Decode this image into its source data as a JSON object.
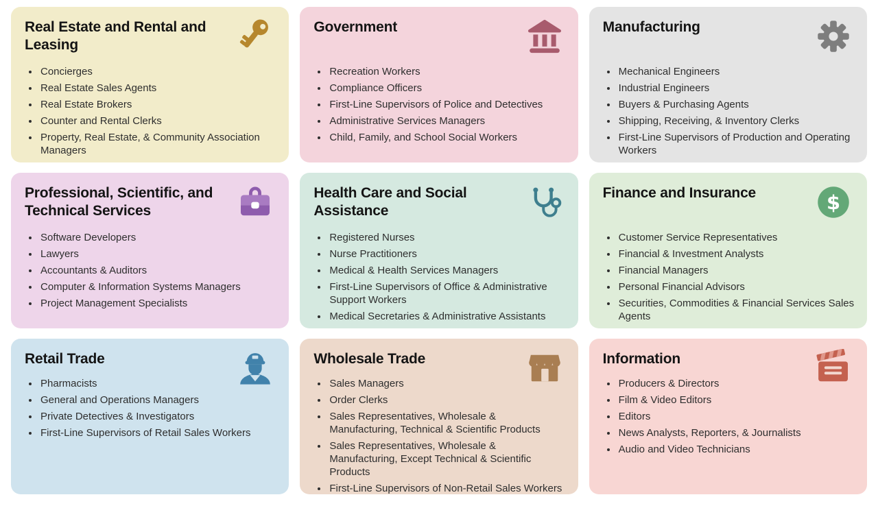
{
  "page": {
    "background": "#ffffff"
  },
  "grid": {
    "cards": [
      {
        "id": "real-estate",
        "title": "Real Estate and Rental and Leasing",
        "icon": "key-icon",
        "colors": {
          "background": "#f2ecca",
          "icon": "#b6872d"
        },
        "items": [
          "Concierges",
          "Real Estate Sales Agents",
          "Real Estate Brokers",
          "Counter and Rental Clerks",
          "Property, Real Estate, & Community Association Managers"
        ]
      },
      {
        "id": "government",
        "title": "Government",
        "icon": "bank-icon",
        "colors": {
          "background": "#f4d4dc",
          "icon": "#a85b6d"
        },
        "items": [
          "Recreation Workers",
          "Compliance Officers",
          "First-Line Supervisors of Police and Detectives",
          "Administrative Services Managers",
          "Child, Family, and School Social Workers"
        ]
      },
      {
        "id": "manufacturing",
        "title": "Manufacturing",
        "icon": "gear-icon",
        "colors": {
          "background": "#e4e4e4",
          "icon": "#7e7e7e"
        },
        "items": [
          "Mechanical Engineers",
          "Industrial Engineers",
          "Buyers & Purchasing Agents",
          "Shipping, Receiving, & Inventory Clerks",
          "First-Line Supervisors of Production and Operating Workers"
        ]
      },
      {
        "id": "professional-scientific-technical",
        "title": "Professional, Scientific, and Technical Services",
        "icon": "briefcase-icon",
        "colors": {
          "background": "#eed5ea",
          "icon": "#a97bc2",
          "icon_secondary": "#8e5cad"
        },
        "items": [
          "Software Developers",
          "Lawyers",
          "Accountants & Auditors",
          "Computer & Information Systems Managers",
          "Project Management Specialists"
        ]
      },
      {
        "id": "health-care",
        "title": "Health Care and Social Assistance",
        "icon": "stethoscope-icon",
        "colors": {
          "background": "#d5e9e0",
          "icon": "#3e7f8e"
        },
        "items": [
          "Registered Nurses",
          "Nurse Practitioners",
          "Medical & Health Services Managers",
          "First-Line Supervisors of Office & Administrative Support Workers",
          "Medical Secretaries & Administrative Assistants"
        ]
      },
      {
        "id": "finance-insurance",
        "title": "Finance and Insurance",
        "icon": "dollar-icon",
        "colors": {
          "background": "#dfedd9",
          "icon": "#63a877"
        },
        "items": [
          "Customer Service Representatives",
          "Financial & Investment Analysts",
          "Financial Managers",
          "Personal Financial Advisors",
          "Securities, Commodities & Financial Services Sales Agents"
        ]
      },
      {
        "id": "retail-trade",
        "title": "Retail Trade",
        "icon": "worker-icon",
        "colors": {
          "background": "#cfe3ee",
          "icon": "#4182ab"
        },
        "items": [
          "Pharmacists",
          "General and Operations Managers",
          "Private Detectives & Investigators",
          "First-Line Supervisors of Retail Sales Workers"
        ]
      },
      {
        "id": "wholesale-trade",
        "title": "Wholesale Trade",
        "icon": "store-icon",
        "colors": {
          "background": "#edd9cb",
          "icon": "#a97e52"
        },
        "items": [
          "Sales Managers",
          "Order Clerks",
          "Sales Representatives, Wholesale & Manufacturing, Technical & Scientific Products",
          "Sales Representatives, Wholesale & Manufacturing, Except Technical & Scientific Products",
          "First-Line Supervisors of Non-Retail Sales Workers"
        ]
      },
      {
        "id": "information",
        "title": "Information",
        "icon": "clapperboard-icon",
        "colors": {
          "background": "#f8d6d3",
          "icon": "#c4614f",
          "icon_secondary": "#e0988b",
          "icon_tertiary": "#f2d8d0"
        },
        "items": [
          "Producers & Directors",
          "Film & Video Editors",
          "Editors",
          "News Analysts, Reporters, & Journalists",
          "Audio and Video Technicians"
        ]
      }
    ]
  }
}
